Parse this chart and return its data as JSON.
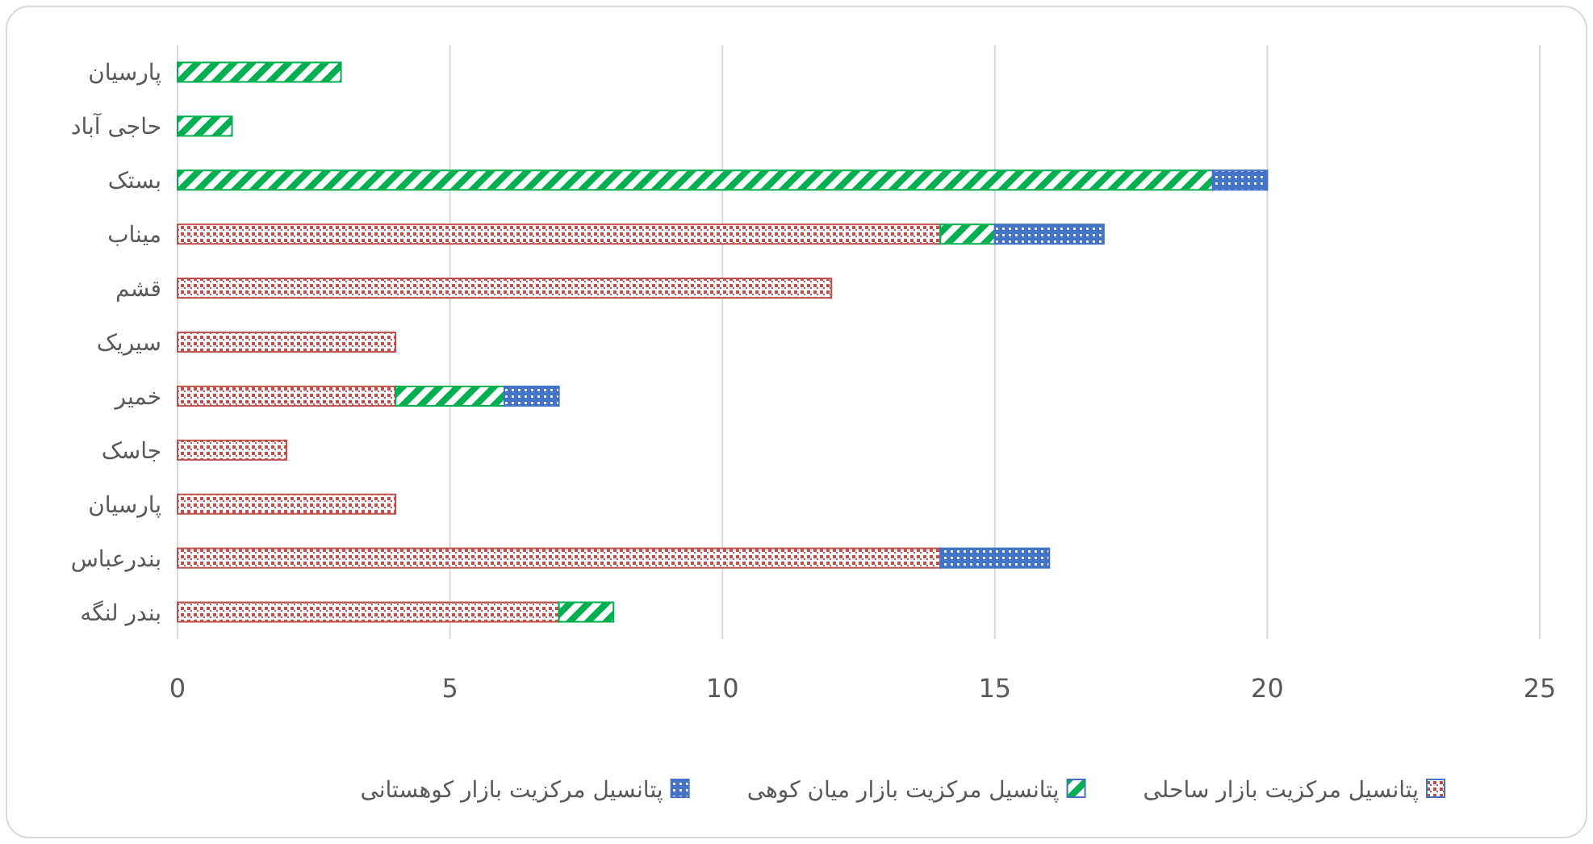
{
  "chart_data": {
    "type": "bar",
    "orientation": "horizontal",
    "stacked": true,
    "categories": [
      "پارسیان",
      "حاجی آباد",
      "بستک",
      "میناب",
      "قشم",
      "سیریک",
      "خمیر",
      "جاسک",
      "پارسیان",
      "بندرعباس",
      "بندر لنگه"
    ],
    "series": [
      {
        "name": "پتانسیل مرکزیت بازار ساحلی",
        "color": "#c0504d",
        "values": [
          0,
          0,
          0,
          14,
          12,
          4,
          4,
          2,
          4,
          14,
          7
        ]
      },
      {
        "name": "پتانسیل مرکزیت بازار میان کوهی",
        "color": "#00b050",
        "values": [
          3,
          1,
          19,
          1,
          0,
          0,
          2,
          0,
          0,
          0,
          1
        ]
      },
      {
        "name": "پتانسیل مرکزیت بازار کوهستانی",
        "color": "#4472c4",
        "values": [
          0,
          0,
          1,
          2,
          0,
          0,
          1,
          0,
          0,
          2,
          0
        ]
      }
    ],
    "xlim": [
      0,
      25
    ],
    "xticks": [
      0,
      5,
      10,
      15,
      20,
      25
    ],
    "grid": "x",
    "legend": "bottom"
  }
}
